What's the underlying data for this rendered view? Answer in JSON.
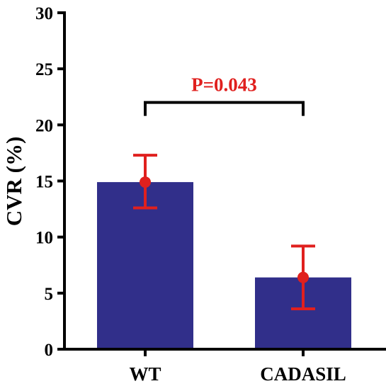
{
  "chart_data": {
    "type": "bar",
    "categories": [
      "WT",
      "CADASIL"
    ],
    "values": [
      14.9,
      6.4
    ],
    "error_low": [
      12.6,
      3.6
    ],
    "error_high": [
      17.3,
      9.2
    ],
    "ylabel": "CVR (%)",
    "xlabel": "",
    "ylim": [
      0,
      30
    ],
    "yticks": [
      0,
      5,
      10,
      15,
      20,
      25,
      30
    ],
    "ytick_labels": [
      "0",
      "5",
      "10",
      "15",
      "20",
      "25",
      "30"
    ],
    "grid": false,
    "annotation": {
      "text": "P=0.043",
      "between": [
        "WT",
        "CADASIL"
      ],
      "y": 22
    },
    "colors": {
      "bar": "#312f8a",
      "error": "#e0201e",
      "annotation_text": "#e0201e",
      "bracket": "#000000",
      "axis": "#000000"
    }
  }
}
